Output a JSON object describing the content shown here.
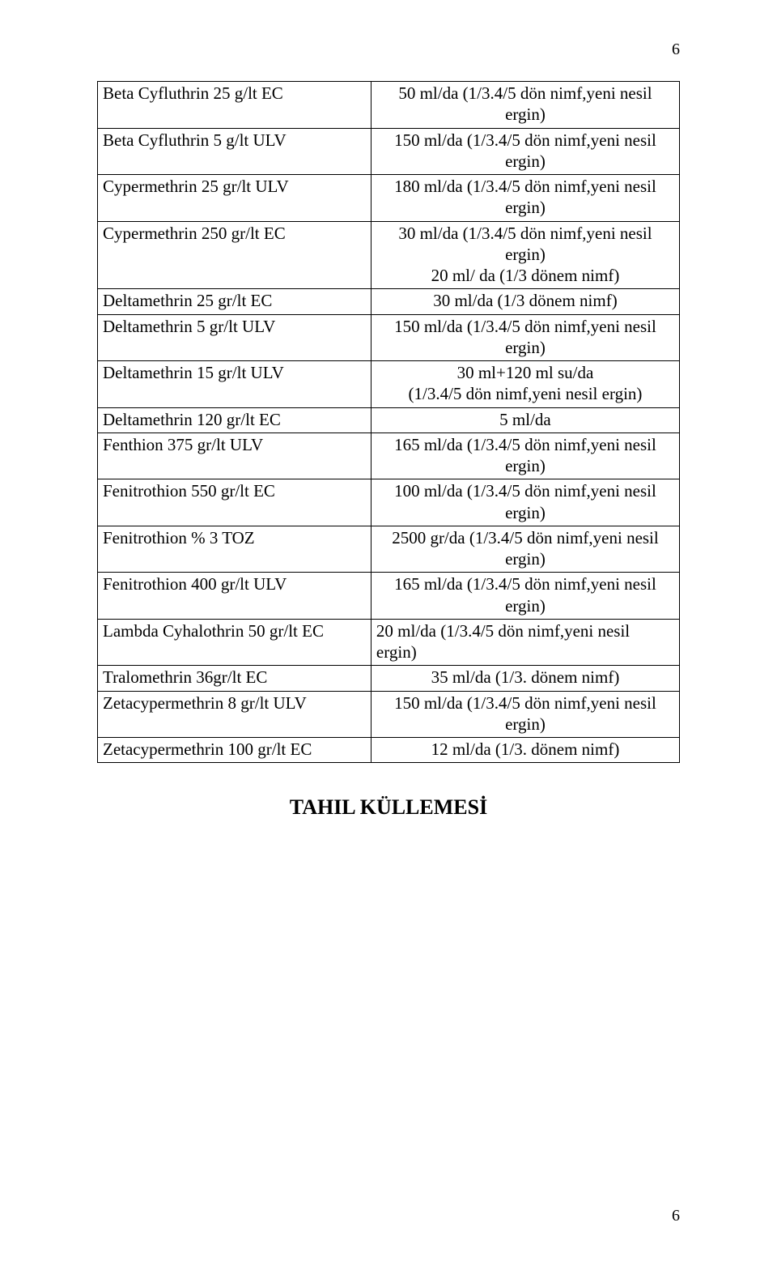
{
  "page_number_top": "6",
  "page_number_bottom": "6",
  "heading": "TAHIL KÜLLEMESİ",
  "rows": [
    {
      "left": "Beta Cyfluthrin 25 g/lt  EC",
      "left_align": "left",
      "right": "50 ml/da (1/3.4/5 dön nimf,yeni nesil ergin)",
      "right_align": "center"
    },
    {
      "left": "Beta Cyfluthrin 5 g/lt ULV",
      "left_align": "left",
      "right": "150 ml/da (1/3.4/5 dön nimf,yeni nesil ergin)",
      "right_align": "center"
    },
    {
      "left": "Cypermethrin 25 gr/lt  ULV",
      "left_align": "left",
      "right": "180 ml/da (1/3.4/5 dön nimf,yeni nesil ergin)",
      "right_align": "center"
    },
    {
      "left": "Cypermethrin 250 gr/lt  EC",
      "left_align": "left",
      "right": "30 ml/da (1/3.4/5 dön nimf,yeni nesil ergin)\n20 ml/ da (1/3 dönem nimf)",
      "right_align": "center"
    },
    {
      "left": "Deltamethrin 25 gr/lt  EC",
      "left_align": "left",
      "right": "30 ml/da (1/3 dönem nimf)",
      "right_align": "center"
    },
    {
      "left": "Deltamethrin 5 gr/lt  ULV",
      "left_align": "left",
      "right": "150 ml/da (1/3.4/5 dön nimf,yeni nesil ergin)",
      "right_align": "center"
    },
    {
      "left": "Deltamethrin 15 gr/lt  ULV",
      "left_align": "left",
      "right": "30 ml+120 ml su/da\n(1/3.4/5 dön nimf,yeni nesil ergin)",
      "right_align": "center"
    },
    {
      "left": "Deltamethrin 120 gr/lt  EC",
      "left_align": "left",
      "right": "5 ml/da",
      "right_align": "center"
    },
    {
      "left": "Fenthion 375 gr/lt  ULV",
      "left_align": "left",
      "right": "165 ml/da (1/3.4/5 dön nimf,yeni nesil ergin)",
      "right_align": "center"
    },
    {
      "left": "Fenitrothion 550 gr/lt EC",
      "left_align": "left",
      "right": "100 ml/da (1/3.4/5 dön nimf,yeni nesil ergin)",
      "right_align": "center"
    },
    {
      "left": "Fenitrothion  % 3  TOZ",
      "left_align": "left",
      "right": "2500 gr/da (1/3.4/5 dön nimf,yeni nesil ergin)",
      "right_align": "center"
    },
    {
      "left": "Fenitrothion 400 gr/lt ULV",
      "left_align": "left",
      "right": "165 ml/da (1/3.4/5 dön nimf,yeni nesil ergin)",
      "right_align": "center"
    },
    {
      "left": "Lambda Cyhalothrin 50 gr/lt EC",
      "left_align": "left",
      "right": "20 ml/da (1/3.4/5 dön nimf,yeni nesil ergin)",
      "right_align": "left"
    },
    {
      "left": "Tralomethrin 36gr/lt   EC",
      "left_align": "left",
      "right": "35 ml/da (1/3. dönem nimf)",
      "right_align": "center"
    },
    {
      "left": "Zetacypermethrin 8 gr/lt  ULV",
      "left_align": "left",
      "right": "150 ml/da (1/3.4/5 dön nimf,yeni nesil ergin)",
      "right_align": "center"
    },
    {
      "left": "Zetacypermethrin 100 gr/lt  EC",
      "left_align": "left",
      "right": "12 ml/da (1/3. dönem nimf)",
      "right_align": "center"
    }
  ]
}
